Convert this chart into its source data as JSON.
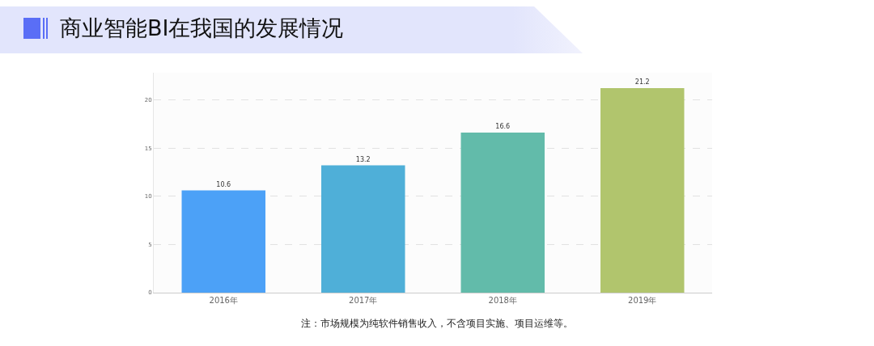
{
  "chart_data": {
    "type": "bar",
    "title": "商业智能BI在我国的发展情况",
    "categories": [
      "2016年",
      "2017年",
      "2018年",
      "2019年"
    ],
    "values": [
      10.6,
      13.2,
      16.6,
      21.2
    ],
    "colors": [
      "#4ca1f7",
      "#4fafd8",
      "#62bbaa",
      "#b1c56d"
    ],
    "ylim": [
      0,
      22.8
    ],
    "yticks": [
      0,
      5,
      10,
      15,
      20
    ],
    "grid": "y",
    "data_labels": true,
    "annotations": [
      "注：市场规模为纯软件销售收入，不含项目实施、项目运维等。"
    ]
  }
}
